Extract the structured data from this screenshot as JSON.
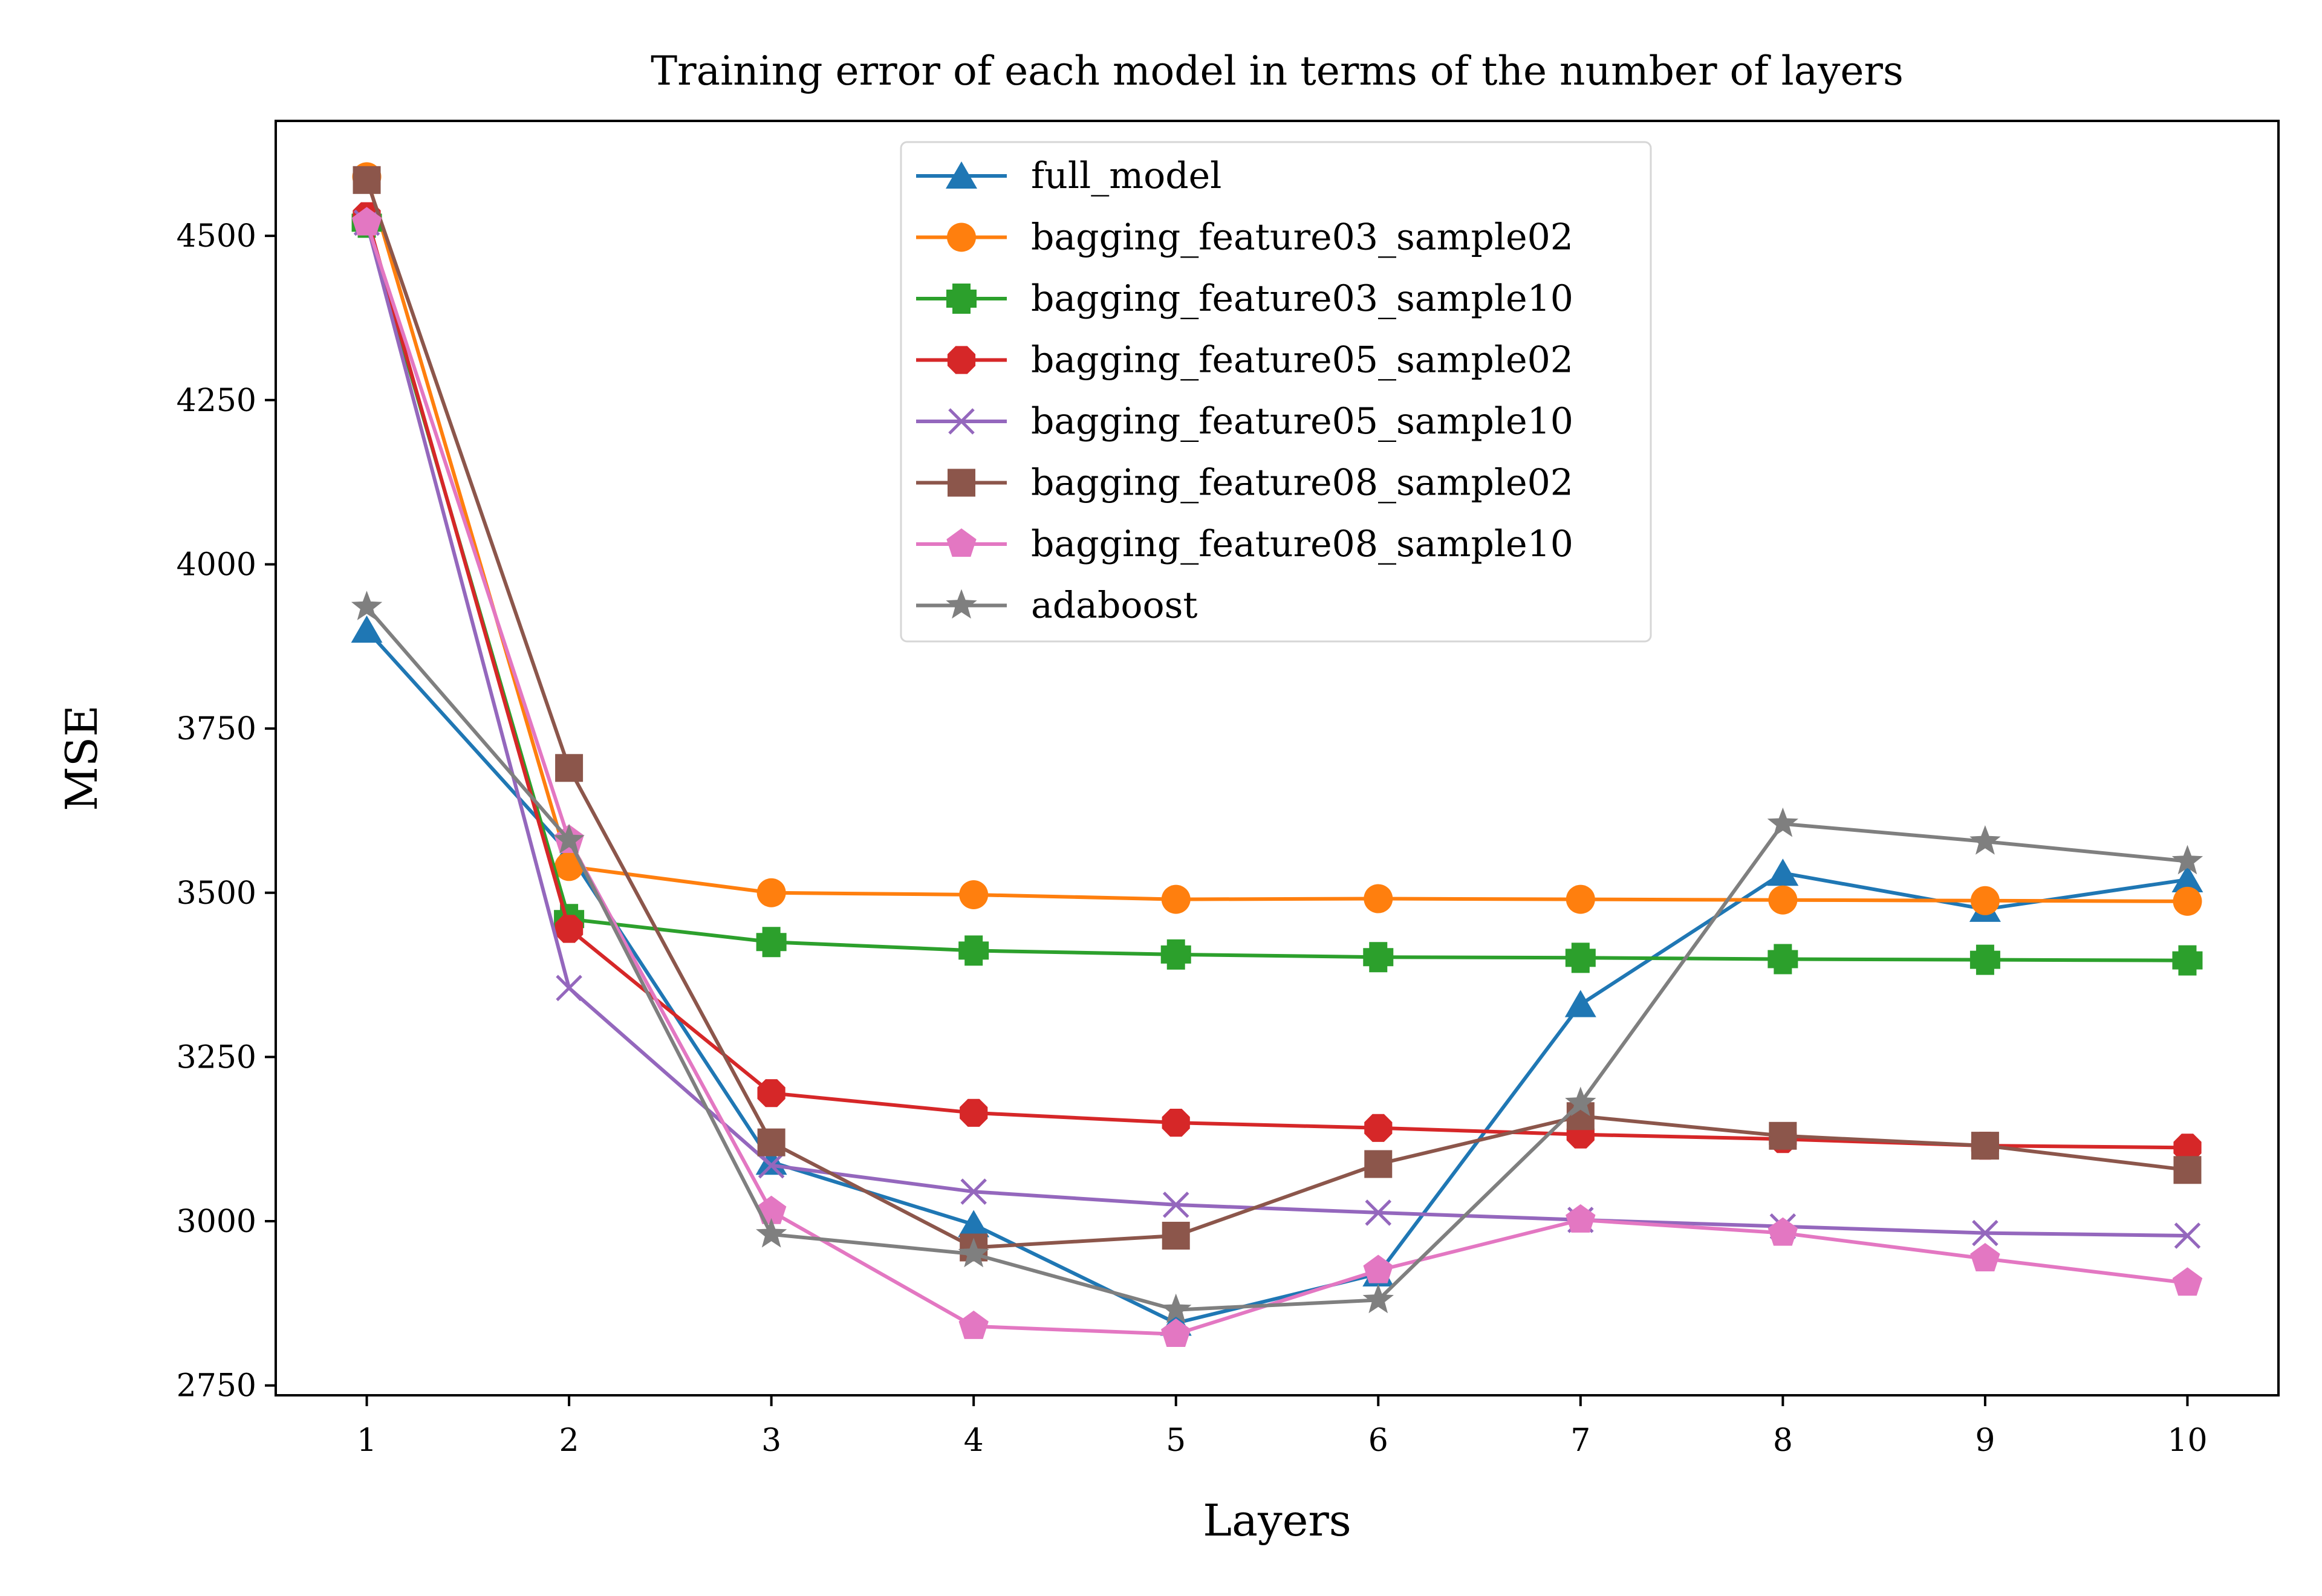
{
  "chart_data": {
    "type": "line",
    "title": "Training error of each model in terms of the number of layers",
    "xlabel": "Layers",
    "ylabel": "MSE",
    "x": [
      1,
      2,
      3,
      4,
      5,
      6,
      7,
      8,
      9,
      10
    ],
    "xlim": [
      0.55,
      10.45
    ],
    "ylim": [
      2735,
      4675
    ],
    "yticks": [
      2750,
      3000,
      3250,
      3500,
      3750,
      4000,
      4250,
      4500
    ],
    "grid": false,
    "legend_position": "upper-center",
    "series": [
      {
        "name": "full_model",
        "color": "#1f77b4",
        "marker": "triangle",
        "values": [
          3900,
          3560,
          3090,
          2995,
          2845,
          2920,
          3330,
          3530,
          3475,
          3520
        ]
      },
      {
        "name": "bagging_feature03_sample02",
        "color": "#ff7f0e",
        "marker": "circle",
        "values": [
          4590,
          3540,
          3500,
          3497,
          3490,
          3491,
          3490,
          3489,
          3488,
          3487
        ]
      },
      {
        "name": "bagging_feature03_sample10",
        "color": "#2ca02c",
        "marker": "plus",
        "values": [
          4520,
          3460,
          3425,
          3412,
          3406,
          3402,
          3401,
          3399,
          3398,
          3397
        ]
      },
      {
        "name": "bagging_feature05_sample02",
        "color": "#d62728",
        "marker": "octagon",
        "values": [
          4530,
          3445,
          3195,
          3165,
          3150,
          3142,
          3132,
          3125,
          3115,
          3112
        ]
      },
      {
        "name": "bagging_feature05_sample10",
        "color": "#9467bd",
        "marker": "x",
        "values": [
          4520,
          3355,
          3085,
          3045,
          3025,
          3013,
          3002,
          2992,
          2982,
          2978
        ]
      },
      {
        "name": "bagging_feature08_sample02",
        "color": "#8c564b",
        "marker": "square",
        "values": [
          4585,
          3690,
          3120,
          2960,
          2978,
          3087,
          3160,
          3130,
          3115,
          3078
        ]
      },
      {
        "name": "bagging_feature08_sample10",
        "color": "#e377c2",
        "marker": "pentagon",
        "values": [
          4520,
          3580,
          3015,
          2840,
          2828,
          2925,
          3002,
          2982,
          2943,
          2906
        ]
      },
      {
        "name": "adaboost",
        "color": "#7f7f7f",
        "marker": "star",
        "values": [
          3935,
          3580,
          2980,
          2950,
          2865,
          2880,
          3180,
          3605,
          3578,
          3548
        ]
      }
    ]
  }
}
